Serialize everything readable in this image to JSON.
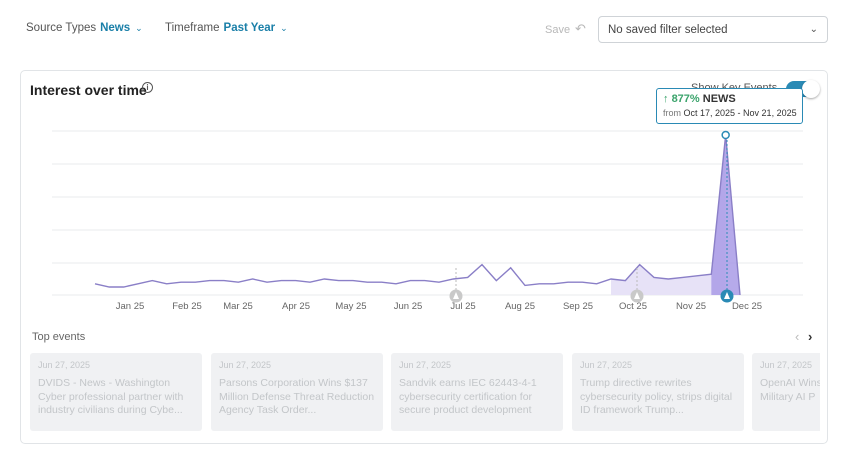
{
  "filters": {
    "source_label": "Source Types",
    "source_value": "News",
    "timeframe_label": "Timeframe",
    "timeframe_value": "Past Year"
  },
  "toolbar": {
    "save_label": "Save",
    "saved_filter_value": "No saved filter selected"
  },
  "card": {
    "title": "Interest over time",
    "key_events_label": "Show Key Events",
    "key_events_enabled": true
  },
  "tooltip": {
    "change": "877%",
    "source": "NEWS",
    "from_label": "from",
    "range": "Oct 17, 2025 - Nov 21, 2025"
  },
  "chart_data": {
    "type": "line",
    "title": "",
    "xlabel": "",
    "ylabel": "",
    "ylim": [
      0,
      100
    ],
    "grid": true,
    "x_ticks": [
      "Jan 25",
      "Feb 25",
      "Mar 25",
      "Apr 25",
      "May 25",
      "Jun 25",
      "Jul 25",
      "Aug 25",
      "Sep 25",
      "Oct 25",
      "Nov 25",
      "Dec 25"
    ],
    "series": [
      {
        "values": [
          7,
          5,
          5,
          7,
          9,
          7,
          8,
          8,
          9,
          9,
          8,
          10,
          8,
          9,
          9,
          8,
          10,
          9,
          9,
          8,
          8,
          7,
          9,
          9,
          8,
          10,
          11,
          19,
          9,
          17,
          6,
          7,
          7,
          8,
          8,
          7,
          10,
          9,
          19,
          11,
          10,
          11,
          12,
          13,
          100,
          0
        ]
      }
    ],
    "highlight_range": [
      "Oct 17, 2025",
      "Nov 21, 2025"
    ],
    "key_event_markers": [
      "Jul 25",
      "Oct 25",
      "Nov 25"
    ]
  },
  "top_events": {
    "title": "Top events",
    "items": [
      {
        "date": "Jun 27, 2025",
        "title": "DVIDS - News - Washington Cyber professional partner with industry civilians during Cybe..."
      },
      {
        "date": "Jun 27, 2025",
        "title": "Parsons Corporation Wins $137 Million Defense Threat Reduction Agency Task Order..."
      },
      {
        "date": "Jun 27, 2025",
        "title": "Sandvik earns IEC 62443-4-1 cybersecurity certification for secure product development"
      },
      {
        "date": "Jun 27, 2025",
        "title": "Trump directive rewrites cybersecurity policy, strips digital ID framework Trump..."
      },
      {
        "date": "Jun 27, 2025",
        "title": "OpenAI Wins Defence Co Military AI P"
      }
    ]
  },
  "colors": {
    "accent": "#1a7fa8",
    "line": "#8a7fc7",
    "highlight_fill": "#e7e2f7",
    "peak_fill": "#a99be6",
    "positive": "#3aa36b"
  }
}
